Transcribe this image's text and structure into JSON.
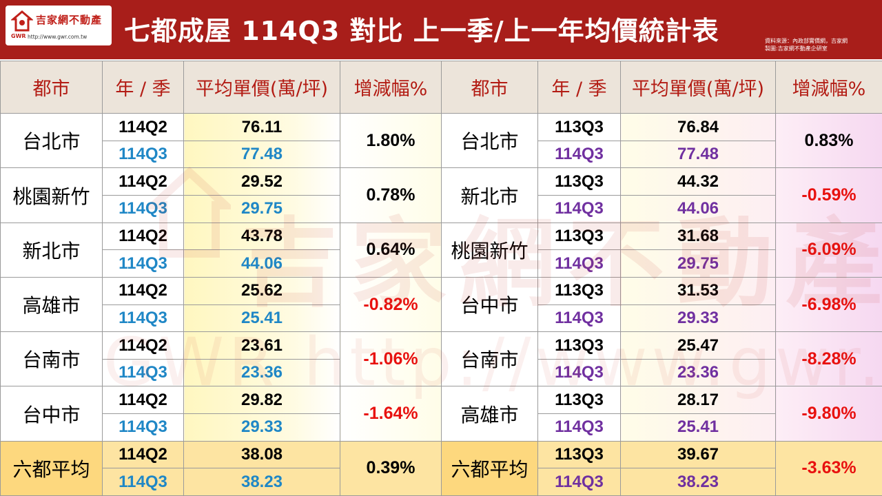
{
  "header": {
    "logo_cn": "吉家網不動產",
    "logo_en": "GWR",
    "logo_url": "http://www.gwr.com.tw",
    "title": "七都成屋  114Q3 對比 上一季/上一年均價統計表",
    "source_line1": "資料來源：內政部實價網，吉家網",
    "source_line2": "製圖:吉家網不動產企研室"
  },
  "columns": [
    "都市",
    "年 / 季",
    "平均單價(萬/坪)",
    "增減幅%",
    "都市",
    "年 / 季",
    "平均單價(萬/坪)",
    "增減幅%"
  ],
  "left_rows": [
    {
      "city": "台北市",
      "q_prev": "114Q2",
      "p_prev": "76.11",
      "q_cur": "114Q3",
      "p_cur": "77.48",
      "change": "1.80%"
    },
    {
      "city": "桃園新竹",
      "q_prev": "114Q2",
      "p_prev": "29.52",
      "q_cur": "114Q3",
      "p_cur": "29.75",
      "change": "0.78%"
    },
    {
      "city": "新北市",
      "q_prev": "114Q2",
      "p_prev": "43.78",
      "q_cur": "114Q3",
      "p_cur": "44.06",
      "change": "0.64%"
    },
    {
      "city": "高雄市",
      "q_prev": "114Q2",
      "p_prev": "25.62",
      "q_cur": "114Q3",
      "p_cur": "25.41",
      "change": "-0.82%"
    },
    {
      "city": "台南市",
      "q_prev": "114Q2",
      "p_prev": "23.61",
      "q_cur": "114Q3",
      "p_cur": "23.36",
      "change": "-1.06%"
    },
    {
      "city": "台中市",
      "q_prev": "114Q2",
      "p_prev": "29.82",
      "q_cur": "114Q3",
      "p_cur": "29.33",
      "change": "-1.64%"
    },
    {
      "city": "六都平均",
      "q_prev": "114Q2",
      "p_prev": "38.08",
      "q_cur": "114Q3",
      "p_cur": "38.23",
      "change": "0.39%"
    }
  ],
  "right_rows": [
    {
      "city": "台北市",
      "q_prev": "113Q3",
      "p_prev": "76.84",
      "q_cur": "114Q3",
      "p_cur": "77.48",
      "change": "0.83%"
    },
    {
      "city": "新北市",
      "q_prev": "113Q3",
      "p_prev": "44.32",
      "q_cur": "114Q3",
      "p_cur": "44.06",
      "change": "-0.59%"
    },
    {
      "city": "桃園新竹",
      "q_prev": "113Q3",
      "p_prev": "31.68",
      "q_cur": "114Q3",
      "p_cur": "29.75",
      "change": "-6.09%"
    },
    {
      "city": "台中市",
      "q_prev": "113Q3",
      "p_prev": "31.53",
      "q_cur": "114Q3",
      "p_cur": "29.33",
      "change": "-6.98%"
    },
    {
      "city": "台南市",
      "q_prev": "113Q3",
      "p_prev": "25.47",
      "q_cur": "114Q3",
      "p_cur": "23.36",
      "change": "-8.28%"
    },
    {
      "city": "高雄市",
      "q_prev": "113Q3",
      "p_prev": "28.17",
      "q_cur": "114Q3",
      "p_cur": "25.41",
      "change": "-9.80%"
    },
    {
      "city": "六都平均",
      "q_prev": "113Q3",
      "p_prev": "39.67",
      "q_cur": "114Q3",
      "p_cur": "38.23",
      "change": "-3.63%"
    }
  ],
  "watermark": {
    "cn": "吉家網不動產",
    "en": "GWR  http://www.gwr.com.tw"
  },
  "colors": {
    "header_bg": "#a81e1a",
    "header_text": "#b31c14",
    "current_left": "#1f87c6",
    "current_right": "#7030a0",
    "negative": "#e8110f",
    "average_row": "#fde4a2"
  }
}
